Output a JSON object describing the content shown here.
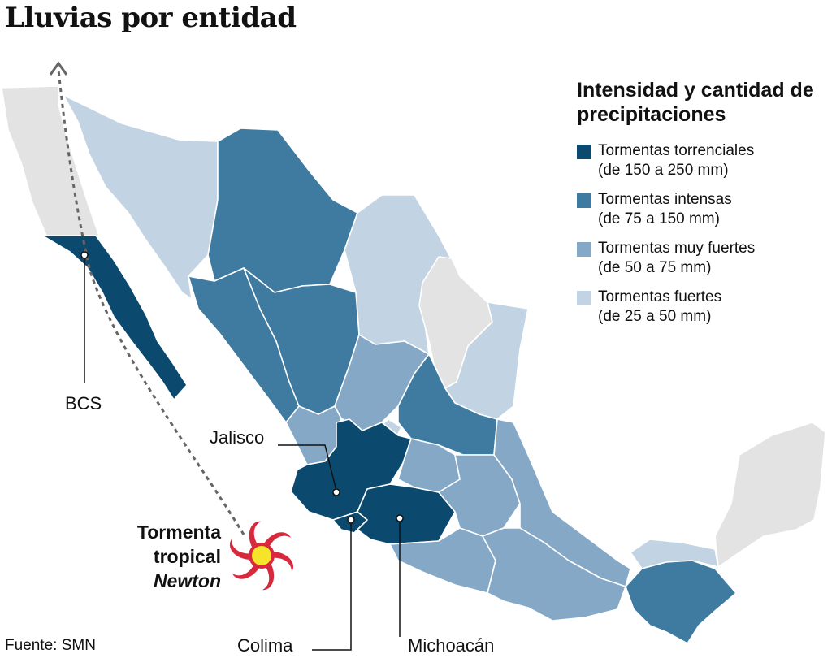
{
  "title": "Lluvias por entidad",
  "legend": {
    "title": "Intensidad y cantidad de precipitaciones",
    "items": [
      {
        "label": "Tormentas torrenciales",
        "range": "(de 150 a 250 mm)",
        "color": "#0b4a6e"
      },
      {
        "label": "Tormentas intensas",
        "range": "(de 75 a 150 mm)",
        "color": "#3f7aa0"
      },
      {
        "label": "Tormentas muy fuertes",
        "range": "(de 50 a 75 mm)",
        "color": "#84a8c6"
      },
      {
        "label": "Tormentas fuertes",
        "range": "(de 25 a 50 mm)",
        "color": "#c2d3e3"
      }
    ]
  },
  "no_data_color": "#e3e3e3",
  "labels": {
    "bcs": "BCS",
    "jalisco": "Jalisco",
    "colima": "Colima",
    "michoacan": "Michoacán"
  },
  "storm": {
    "line1": "Tormenta",
    "line2": "tropical",
    "name": "Newton",
    "icon": "hurricane-icon",
    "spiral_color": "#d8283c",
    "eye_color": "#f5e42a"
  },
  "source": "Fuente: SMN"
}
